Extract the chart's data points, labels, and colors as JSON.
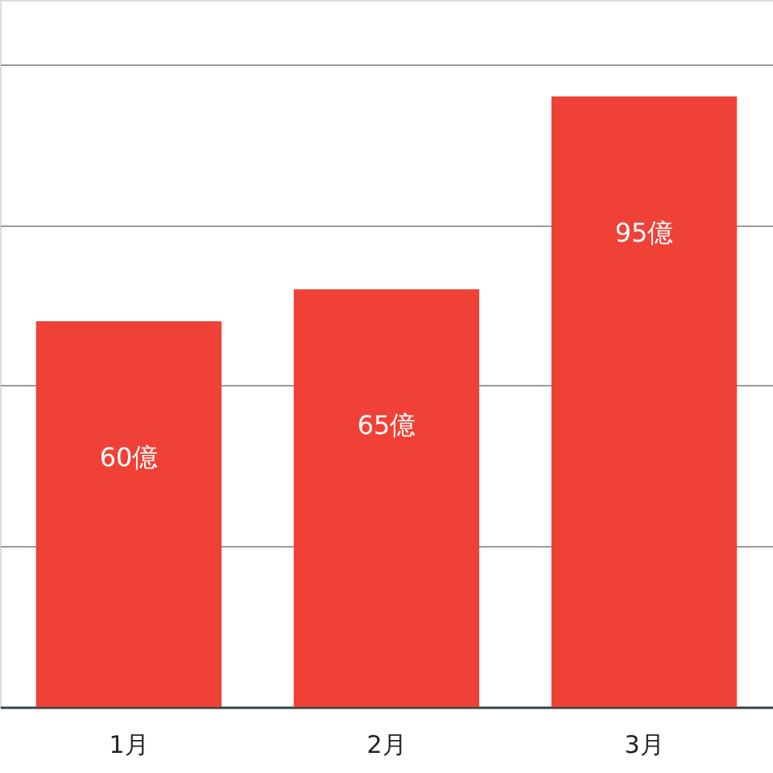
{
  "chart_data": {
    "type": "bar",
    "categories": [
      "1月",
      "2月",
      "3月"
    ],
    "values": [
      60,
      65,
      95
    ],
    "color": "#ef4136",
    "value_labels": [
      "60億",
      "65億",
      "95億"
    ],
    "ylim": [
      0,
      110
    ],
    "yticks": [
      {
        "value": 25,
        "label": null
      },
      {
        "value": 50,
        "label": null
      },
      {
        "value": 75,
        "label": null
      },
      {
        "value": 100,
        "label": null
      }
    ],
    "grid": "y",
    "tick_labels": "x"
  }
}
